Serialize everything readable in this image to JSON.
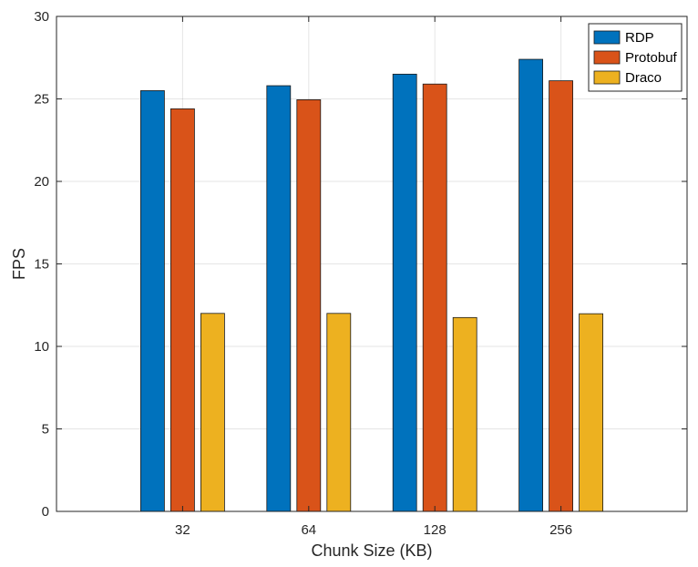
{
  "chart_data": {
    "type": "bar",
    "title": "",
    "xlabel": "Chunk Size (KB)",
    "ylabel": "FPS",
    "categories": [
      "32",
      "64",
      "128",
      "256"
    ],
    "ylim": [
      0,
      30
    ],
    "yticks": [
      "0",
      "5",
      "10",
      "15",
      "20",
      "25",
      "30"
    ],
    "grid": true,
    "legend_position": "top-right",
    "series": [
      {
        "name": "RDP",
        "color": "#0072BD",
        "values": [
          25.5,
          25.8,
          26.5,
          27.4
        ]
      },
      {
        "name": "Protobuf",
        "color": "#D95319",
        "values": [
          24.4,
          24.95,
          25.9,
          26.1
        ]
      },
      {
        "name": "Draco",
        "color": "#EDB120",
        "values": [
          12.0,
          12.0,
          11.75,
          11.98
        ]
      }
    ]
  }
}
